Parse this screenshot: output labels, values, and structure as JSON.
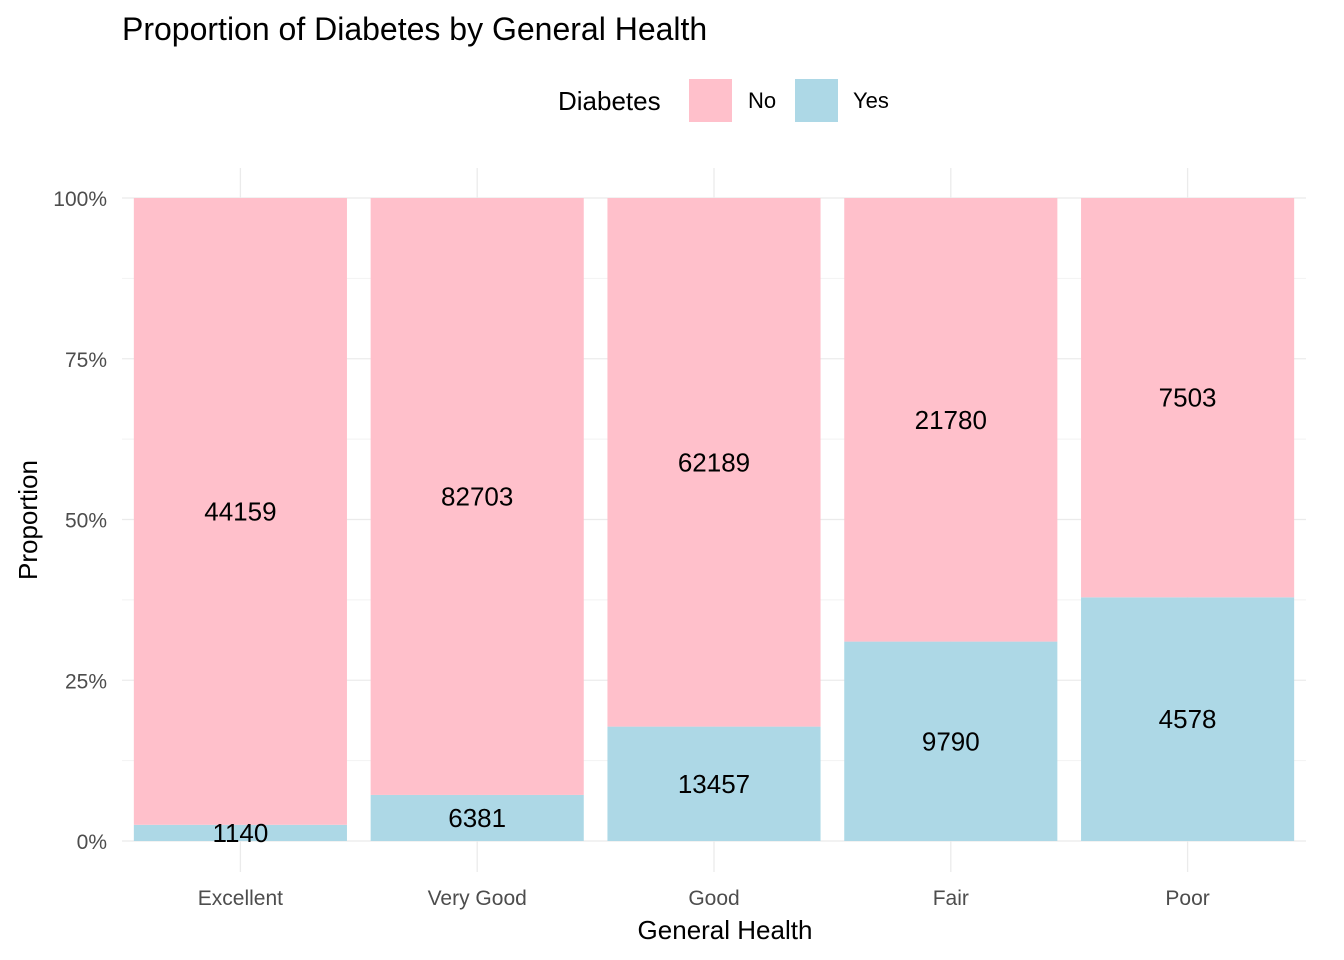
{
  "chart_data": {
    "type": "bar",
    "stacked": true,
    "normalized": true,
    "title": "Proportion of Diabetes by General Health",
    "xlabel": "General Health",
    "ylabel": "Proportion",
    "ylim": [
      0,
      1
    ],
    "yticks": [
      0,
      0.25,
      0.5,
      0.75,
      1
    ],
    "ytick_labels": [
      "0%",
      "25%",
      "50%",
      "75%",
      "100%"
    ],
    "grid": true,
    "legend": {
      "title": "Diabetes",
      "position": "top"
    },
    "categories": [
      "Excellent",
      "Very Good",
      "Good",
      "Fair",
      "Poor"
    ],
    "series": [
      {
        "name": "No",
        "color": "#FFC0CB",
        "values": [
          44159,
          82703,
          62189,
          21780,
          7503
        ]
      },
      {
        "name": "Yes",
        "color": "#ADD8E6",
        "values": [
          1140,
          6381,
          13457,
          9790,
          4578
        ]
      }
    ]
  }
}
